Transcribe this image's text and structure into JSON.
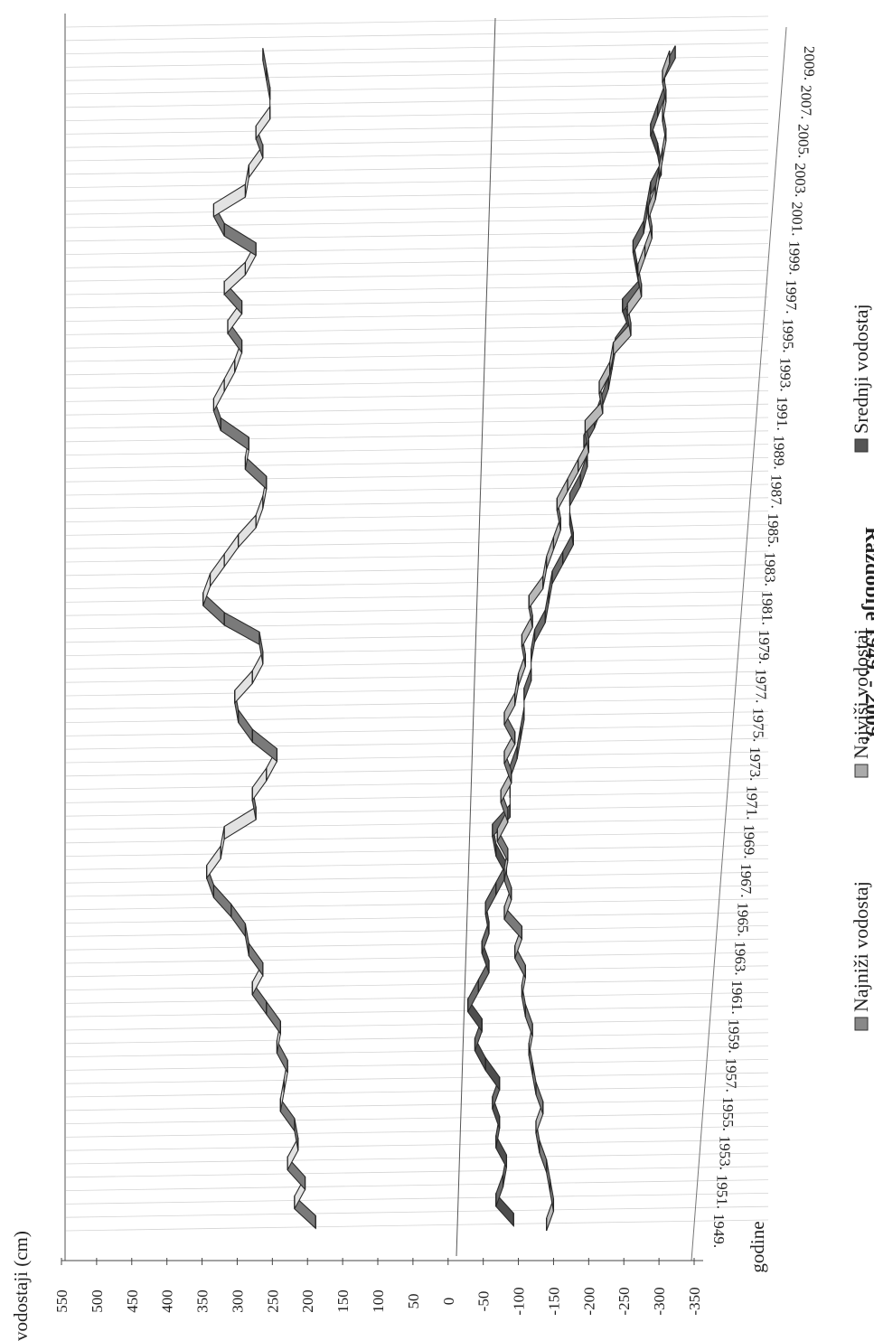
{
  "chart_data": {
    "type": "line",
    "title": "Razdoblje 1949. - 2009.",
    "ylabel": "vodostaji (cm)",
    "xlabel": "godine",
    "ylim": [
      -350,
      550
    ],
    "yticks": [
      550,
      500,
      450,
      400,
      350,
      300,
      250,
      200,
      150,
      100,
      50,
      0,
      -50,
      -100,
      -150,
      -200,
      -250,
      -300,
      -350
    ],
    "xtick_labels": [
      "1949.",
      "1951.",
      "1953.",
      "1955.",
      "1957.",
      "1959.",
      "1961.",
      "1963.",
      "1965.",
      "1967.",
      "1969.",
      "1971.",
      "1973.",
      "1975.",
      "1977.",
      "1979.",
      "1981.",
      "1983.",
      "1985.",
      "1987.",
      "1989.",
      "1991.",
      "1993.",
      "1995.",
      "1997.",
      "1999.",
      "2001.",
      "2003.",
      "2005.",
      "2007.",
      "2009."
    ],
    "x": [
      1949,
      1950,
      1951,
      1952,
      1953,
      1954,
      1955,
      1956,
      1957,
      1958,
      1959,
      1960,
      1961,
      1962,
      1963,
      1964,
      1965,
      1966,
      1967,
      1968,
      1969,
      1970,
      1971,
      1972,
      1973,
      1974,
      1975,
      1976,
      1977,
      1978,
      1979,
      1980,
      1981,
      1982,
      1983,
      1984,
      1985,
      1986,
      1987,
      1988,
      1989,
      1990,
      1991,
      1992,
      1993,
      1994,
      1995,
      1996,
      1997,
      1998,
      1999,
      2000,
      2001,
      2002,
      2003,
      2004,
      2005,
      2006,
      2007,
      2008,
      2009
    ],
    "legend_position": "bottom",
    "series": [
      {
        "name": "Najniži vodostaj",
        "color": "#b8b8b8",
        "values": [
          -140,
          -150,
          -145,
          -140,
          -130,
          -125,
          -135,
          -125,
          -120,
          -115,
          -120,
          -110,
          -105,
          -110,
          -95,
          -105,
          -80,
          -90,
          -80,
          -85,
          -70,
          -85,
          -75,
          -90,
          -80,
          -95,
          -80,
          -95,
          -100,
          -110,
          -105,
          -120,
          -115,
          -135,
          -140,
          -150,
          -160,
          -155,
          -170,
          -185,
          -200,
          -195,
          -220,
          -215,
          -230,
          -235,
          -260,
          -255,
          -275,
          -270,
          -280,
          -290,
          -285,
          -295,
          -300,
          -305,
          -310,
          -305,
          -310,
          -305,
          -315
        ]
      },
      {
        "name": "Najviši vodostaj",
        "color": "#e2e2e2",
        "values": [
          200,
          230,
          215,
          240,
          225,
          230,
          250,
          245,
          240,
          255,
          250,
          270,
          290,
          275,
          295,
          300,
          320,
          345,
          355,
          335,
          330,
          285,
          290,
          270,
          255,
          290,
          310,
          315,
          290,
          275,
          280,
          330,
          360,
          350,
          330,
          310,
          285,
          275,
          270,
          300,
          295,
          335,
          345,
          330,
          315,
          305,
          325,
          305,
          330,
          300,
          285,
          330,
          345,
          300,
          295,
          275,
          285,
          265,
          265,
          270,
          275
        ]
      },
      {
        "name": "Srednji vodostaj",
        "color": "#6a6a6a",
        "values": [
          -70,
          -45,
          -55,
          -60,
          -45,
          -50,
          -40,
          -50,
          -30,
          -15,
          -25,
          -5,
          -20,
          -35,
          -25,
          -35,
          -30,
          -45,
          -60,
          -45,
          -40,
          -65,
          -65,
          -65,
          -75,
          -80,
          -85,
          -85,
          -95,
          -95,
          -100,
          -115,
          -120,
          -125,
          -140,
          -155,
          -150,
          -150,
          -165,
          -175,
          -170,
          -185,
          -195,
          -205,
          -210,
          -215,
          -235,
          -225,
          -250,
          -245,
          -240,
          -255,
          -260,
          -265,
          -280,
          -275,
          -265,
          -275,
          -285,
          -285,
          -300
        ]
      }
    ]
  }
}
